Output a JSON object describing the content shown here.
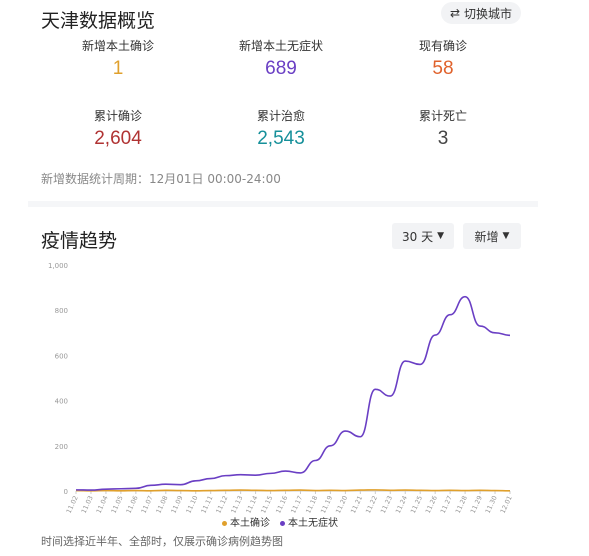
{
  "header": {
    "title": "天津数据概览",
    "switch_label": "切换城市",
    "switch_icon": "swap-icon"
  },
  "stats": [
    {
      "label": "新增本土确诊",
      "value": "1",
      "color": "#e0a02c"
    },
    {
      "label": "新增本土无症状",
      "value": "689",
      "color": "#6a3fc4"
    },
    {
      "label": "现有确诊",
      "value": "58",
      "color": "#e0622c"
    },
    {
      "label": "累计确诊",
      "value": "2,604",
      "color": "#b03333"
    },
    {
      "label": "累计治愈",
      "value": "2,543",
      "color": "#16909a"
    },
    {
      "label": "累计死亡",
      "value": "3",
      "color": "#444444"
    }
  ],
  "period": "新增数据统计周期：12月01日 00:00-24:00",
  "trend": {
    "title": "疫情趋势",
    "range_label": "30 天",
    "mode_label": "新增",
    "footnote": "时间选择近半年、全部时，仅展示确诊病例趋势图"
  },
  "chart_data": {
    "type": "line",
    "x": [
      "11.02",
      "11.03",
      "11.04",
      "11.05",
      "11.06",
      "11.07",
      "11.08",
      "11.09",
      "11.10",
      "11.11",
      "11.12",
      "11.13",
      "11.14",
      "11.15",
      "11.16",
      "11.17",
      "11.18",
      "11.19",
      "11.20",
      "11.21",
      "11.22",
      "11.23",
      "11.24",
      "11.25",
      "11.26",
      "11.27",
      "11.28",
      "11.29",
      "11.30",
      "12.01"
    ],
    "series": [
      {
        "name": "本土确诊",
        "color": "#e0a02c",
        "values": [
          2,
          1,
          2,
          1,
          2,
          1,
          3,
          2,
          1,
          2,
          3,
          4,
          3,
          2,
          3,
          4,
          2,
          3,
          2,
          4,
          5,
          3,
          4,
          3,
          2,
          3,
          2,
          3,
          2,
          1
        ]
      },
      {
        "name": "本土无症状",
        "color": "#6a3fc4",
        "values": [
          5,
          4,
          8,
          10,
          12,
          25,
          30,
          28,
          45,
          55,
          68,
          72,
          70,
          78,
          88,
          80,
          135,
          200,
          265,
          240,
          450,
          420,
          575,
          560,
          690,
          780,
          860,
          730,
          700,
          689
        ]
      }
    ],
    "ylim": [
      0,
      1000
    ],
    "yticks": [
      0,
      200,
      400,
      600,
      800,
      "1,000"
    ],
    "grid": false,
    "legend": "bottom"
  }
}
